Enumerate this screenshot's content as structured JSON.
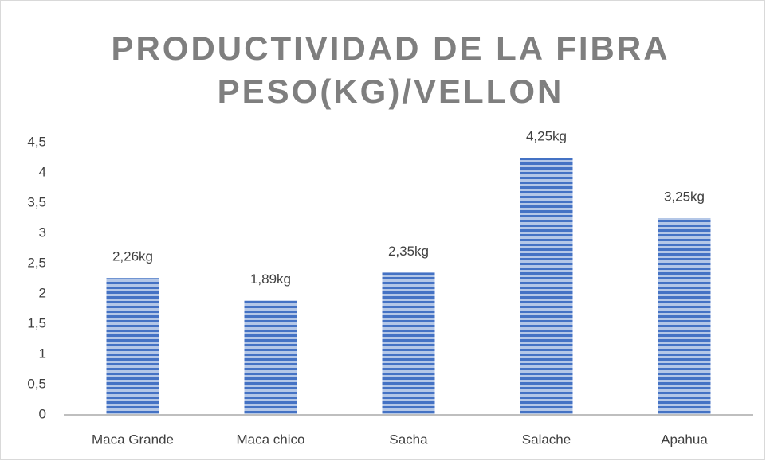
{
  "chart_data": {
    "type": "bar",
    "title": [
      "PRODUCTIVIDAD DE LA FIBRA",
      "PESO(KG)/VELLON"
    ],
    "categories": [
      "Maca Grande",
      "Maca chico",
      "Sacha",
      "Salache",
      "Apahua"
    ],
    "values": [
      2.26,
      1.89,
      2.35,
      4.25,
      3.25
    ],
    "value_labels": [
      "2,26kg",
      "1,89kg",
      "2,35kg",
      "4,25kg",
      "3,25kg"
    ],
    "color": "#4472c4",
    "ylim": [
      0,
      4.5
    ],
    "yticks": [
      0,
      {
        "value": 0.5,
        "label": "0,5"
      },
      1,
      {
        "value": 1.5,
        "label": "1,5"
      },
      2,
      {
        "value": 2.5,
        "label": "2,5"
      },
      3,
      {
        "value": 3.5,
        "label": "3,5"
      },
      4,
      {
        "value": 4.5,
        "label": "4,5"
      }
    ],
    "grid": false
  }
}
